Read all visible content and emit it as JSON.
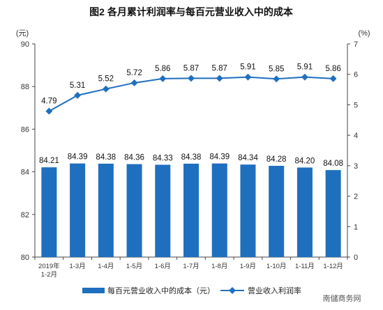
{
  "chart_data": {
    "type": "bar+line",
    "title": "图2  各月累计利润率与每百元营业收入中的成本",
    "categories": [
      "2019年 1-2月",
      "1-3月",
      "1-4月",
      "1-5月",
      "1-6月",
      "1-7月",
      "1-8月",
      "1-9月",
      "1-10月",
      "1-11月",
      "1-12月"
    ],
    "left_unit": "(元)",
    "right_unit": "(%)",
    "ylim_left": [
      80,
      90
    ],
    "yticks_left": [
      80,
      82,
      84,
      86,
      88,
      90
    ],
    "ylim_right": [
      0,
      7
    ],
    "yticks_right": [
      0,
      1,
      2,
      3,
      4,
      5,
      6,
      7
    ],
    "series": [
      {
        "name": "每百元营业收入中的成本（元）",
        "type": "bar",
        "axis": "left",
        "color": "#1f6fbf",
        "values": [
          84.21,
          84.39,
          84.38,
          84.36,
          84.33,
          84.38,
          84.39,
          84.34,
          84.28,
          84.2,
          84.08
        ]
      },
      {
        "name": "营业收入利润率",
        "type": "line",
        "axis": "right",
        "color": "#1f6fbf",
        "values": [
          4.79,
          5.31,
          5.52,
          5.72,
          5.86,
          5.87,
          5.87,
          5.91,
          5.85,
          5.91,
          5.86
        ]
      }
    ],
    "grid": false,
    "legend_position": "bottom"
  },
  "watermark": "南儲商务网"
}
